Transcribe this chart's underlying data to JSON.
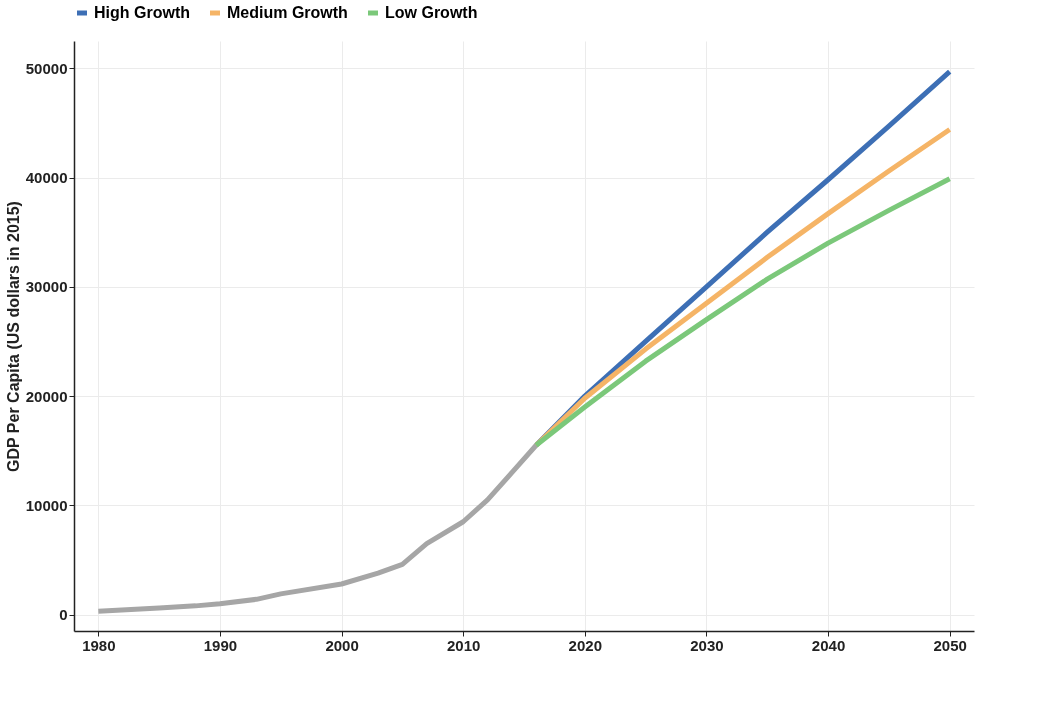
{
  "chart_data": {
    "type": "line",
    "ylabel": "GDP Per Capita (US dollars in 2015)",
    "xlim": [
      1978,
      2052
    ],
    "xticks": [
      1980,
      1990,
      2000,
      2010,
      2020,
      2030,
      2040,
      2050
    ],
    "ylim": [
      -1500,
      52500
    ],
    "yticks": [
      0,
      10000,
      20000,
      30000,
      40000,
      50000
    ],
    "grid": true,
    "legend": "top",
    "line_style": "solid",
    "series": [
      {
        "color": "#a6a6a6",
        "x": [
          1980,
          1985,
          1988,
          1990,
          1993,
          1995,
          2000,
          2003,
          2005,
          2007,
          2010,
          2012,
          2014,
          2016
        ],
        "values": [
          300,
          600,
          800,
          1000,
          1400,
          1900,
          2800,
          3800,
          4600,
          6500,
          8500,
          10500,
          13000,
          15500
        ]
      },
      {
        "name": "High Growth",
        "color": "#3d6fb5",
        "x": [
          2016,
          2020,
          2025,
          2030,
          2035,
          2040,
          2045,
          2050
        ],
        "values": [
          15500,
          20000,
          25000,
          30000,
          35000,
          39800,
          44700,
          49700
        ]
      },
      {
        "name": "Medium Growth",
        "color": "#f5b466",
        "x": [
          2016,
          2020,
          2025,
          2030,
          2035,
          2040,
          2045,
          2050
        ],
        "values": [
          15500,
          19800,
          24300,
          28500,
          32700,
          36700,
          40600,
          44400
        ]
      },
      {
        "name": "Low Growth",
        "color": "#7bc87a",
        "x": [
          2016,
          2020,
          2025,
          2030,
          2035,
          2040,
          2045,
          2050
        ],
        "values": [
          15500,
          19000,
          23200,
          27000,
          30700,
          34000,
          37000,
          39900
        ]
      }
    ]
  }
}
